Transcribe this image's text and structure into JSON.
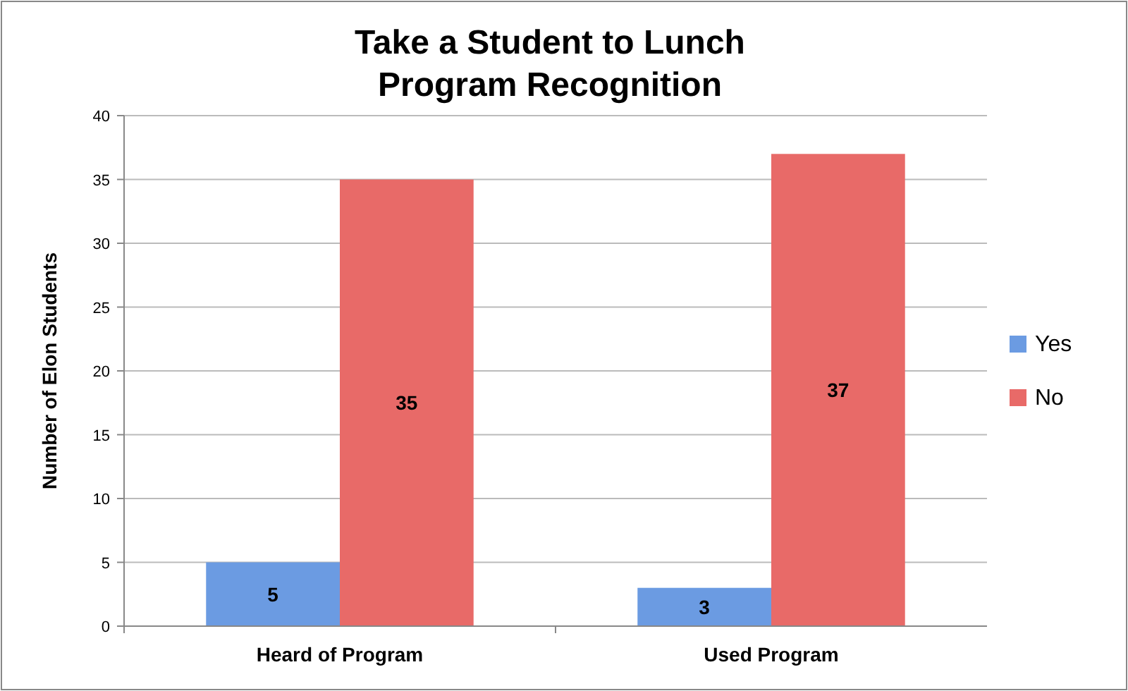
{
  "chart_data": {
    "type": "bar",
    "title": "Take a Student to Lunch\nProgram Recognition",
    "ylabel": "Number of Elon Students",
    "categories": [
      "Heard of Program",
      "Used Program"
    ],
    "series": [
      {
        "name": "Yes",
        "color": "#6b9be2",
        "values": [
          5,
          3
        ]
      },
      {
        "name": "No",
        "color": "#e86a68",
        "values": [
          35,
          37
        ]
      }
    ],
    "ylim": [
      0,
      40
    ],
    "yticks": [
      0,
      5,
      10,
      15,
      20,
      25,
      30,
      35,
      40
    ],
    "grid": "y",
    "legend": "right",
    "data_labels": true
  }
}
